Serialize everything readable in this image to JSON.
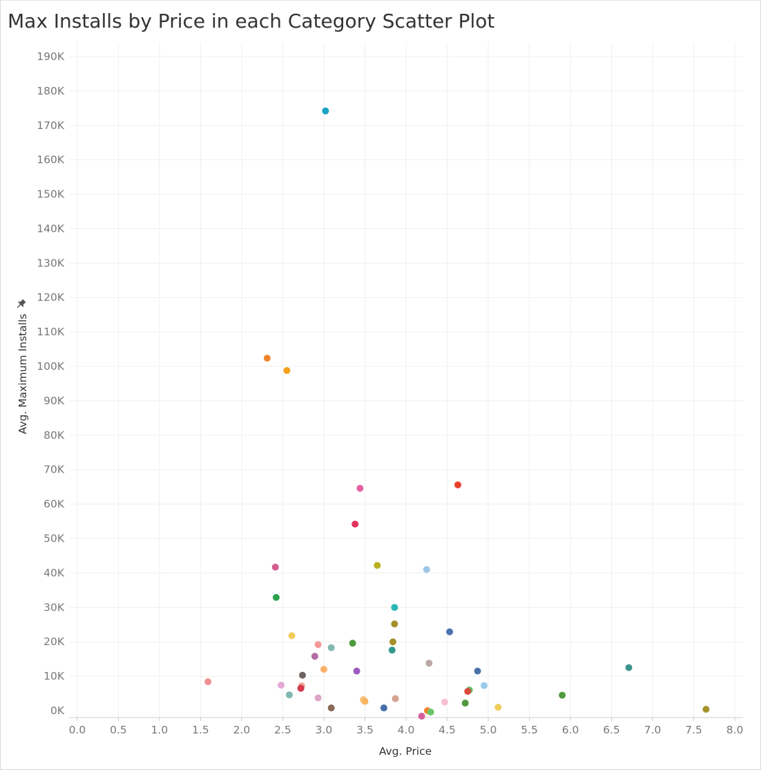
{
  "chart_data": {
    "type": "scatter",
    "title": "Max Installs by Price in each Category Scatter Plot",
    "xlabel": "Avg. Price",
    "ylabel": "Avg. Maximum Installs",
    "ylabel_icon": "pin-icon",
    "xlim": [
      -0.1,
      8.1
    ],
    "ylim": [
      -2000,
      194000
    ],
    "x_ticks": [
      0,
      0.5,
      1,
      1.5,
      2,
      2.5,
      3,
      3.5,
      4,
      4.5,
      5,
      5.5,
      6,
      6.5,
      7,
      7.5,
      8
    ],
    "x_tick_labels": [
      "0.0",
      "0.5",
      "1.0",
      "1.5",
      "2.0",
      "2.5",
      "3.0",
      "3.5",
      "4.0",
      "4.5",
      "5.0",
      "5.5",
      "6.0",
      "6.5",
      "7.0",
      "7.5",
      "8.0"
    ],
    "y_ticks": [
      0,
      10000,
      20000,
      30000,
      40000,
      50000,
      60000,
      70000,
      80000,
      90000,
      100000,
      110000,
      120000,
      130000,
      140000,
      150000,
      160000,
      170000,
      180000,
      190000
    ],
    "y_tick_labels": [
      "0K",
      "10K",
      "20K",
      "30K",
      "40K",
      "50K",
      "60K",
      "70K",
      "80K",
      "90K",
      "100K",
      "110K",
      "120K",
      "130K",
      "140K",
      "150K",
      "160K",
      "170K",
      "180K",
      "190K"
    ],
    "grid": true,
    "points": [
      {
        "x": 3.02,
        "y": 174200,
        "color": "#1ba3c6"
      },
      {
        "x": 2.31,
        "y": 102400,
        "color": "#f0862a"
      },
      {
        "x": 2.55,
        "y": 98800,
        "color": "#f5a01a"
      },
      {
        "x": 4.63,
        "y": 65600,
        "color": "#e8412a"
      },
      {
        "x": 3.44,
        "y": 64600,
        "color": "#e8619b"
      },
      {
        "x": 3.38,
        "y": 54200,
        "color": "#e6335f"
      },
      {
        "x": 2.41,
        "y": 41700,
        "color": "#d35d8f"
      },
      {
        "x": 3.65,
        "y": 42200,
        "color": "#b9b120"
      },
      {
        "x": 4.25,
        "y": 41000,
        "color": "#9ec5e5"
      },
      {
        "x": 2.42,
        "y": 32900,
        "color": "#2ea24f"
      },
      {
        "x": 3.86,
        "y": 30000,
        "color": "#28b7b4"
      },
      {
        "x": 3.86,
        "y": 25200,
        "color": "#a6902a"
      },
      {
        "x": 4.53,
        "y": 22900,
        "color": "#4c72b0"
      },
      {
        "x": 2.61,
        "y": 21800,
        "color": "#f0cd5b"
      },
      {
        "x": 2.93,
        "y": 19200,
        "color": "#f59898"
      },
      {
        "x": 3.09,
        "y": 18300,
        "color": "#82b9b4"
      },
      {
        "x": 3.35,
        "y": 19600,
        "color": "#4e9a3e"
      },
      {
        "x": 3.84,
        "y": 20000,
        "color": "#a6902a"
      },
      {
        "x": 3.83,
        "y": 17600,
        "color": "#31998b"
      },
      {
        "x": 2.89,
        "y": 15800,
        "color": "#b46da0"
      },
      {
        "x": 4.28,
        "y": 13800,
        "color": "#bba8a5"
      },
      {
        "x": 3.0,
        "y": 12000,
        "color": "#fdb069"
      },
      {
        "x": 3.4,
        "y": 11500,
        "color": "#9d58bf"
      },
      {
        "x": 4.87,
        "y": 11500,
        "color": "#4a72a8"
      },
      {
        "x": 6.71,
        "y": 12500,
        "color": "#3c968c"
      },
      {
        "x": 2.74,
        "y": 10300,
        "color": "#6f6262"
      },
      {
        "x": 1.59,
        "y": 8400,
        "color": "#f08e90"
      },
      {
        "x": 2.48,
        "y": 7400,
        "color": "#e3a8d6"
      },
      {
        "x": 2.73,
        "y": 7200,
        "color": "#f0a098"
      },
      {
        "x": 2.72,
        "y": 6500,
        "color": "#d6384c"
      },
      {
        "x": 4.95,
        "y": 7300,
        "color": "#99c9eb"
      },
      {
        "x": 4.77,
        "y": 6000,
        "color": "#69b663"
      },
      {
        "x": 4.75,
        "y": 5600,
        "color": "#d94c3d"
      },
      {
        "x": 2.58,
        "y": 4600,
        "color": "#80b7b1"
      },
      {
        "x": 5.9,
        "y": 4500,
        "color": "#4e9a3e"
      },
      {
        "x": 2.93,
        "y": 3700,
        "color": "#dca6c8"
      },
      {
        "x": 3.48,
        "y": 3200,
        "color": "#fdc07b"
      },
      {
        "x": 3.5,
        "y": 2700,
        "color": "#f7b564"
      },
      {
        "x": 3.87,
        "y": 3500,
        "color": "#d6a392"
      },
      {
        "x": 4.47,
        "y": 2500,
        "color": "#f7bfd2"
      },
      {
        "x": 4.72,
        "y": 2200,
        "color": "#4e9a3e"
      },
      {
        "x": 3.09,
        "y": 800,
        "color": "#8b6a58"
      },
      {
        "x": 3.73,
        "y": 800,
        "color": "#456fa6"
      },
      {
        "x": 4.26,
        "y": 0,
        "color": "#f0862a"
      },
      {
        "x": 4.3,
        "y": -400,
        "color": "#6ac66a"
      },
      {
        "x": 4.19,
        "y": -1600,
        "color": "#d4609a"
      },
      {
        "x": 5.12,
        "y": 1000,
        "color": "#f0cd5b"
      },
      {
        "x": 7.65,
        "y": 400,
        "color": "#a6902a"
      }
    ]
  }
}
